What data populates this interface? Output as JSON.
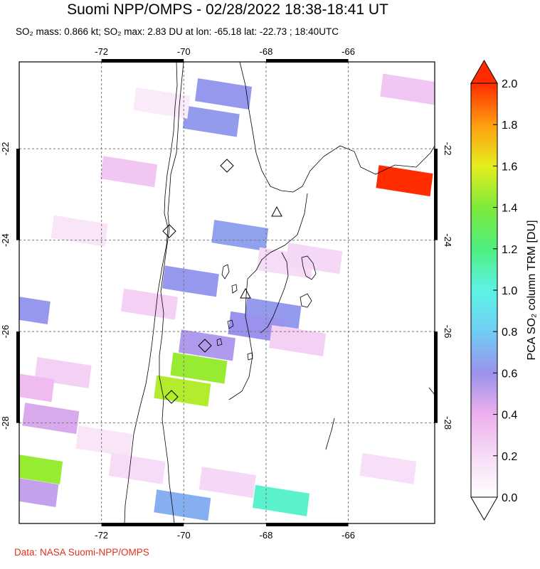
{
  "title": "Suomi NPP/OMPS - 02/28/2022 18:38-18:41 UT",
  "subtitle": "SO₂ mass: 0.866 kt; SO₂ max: 2.83 DU at lon: -65.18 lat: -22.73 ; 18:40UTC",
  "credit": "Data: NASA Suomi-NPP/OMPS",
  "chart_data": {
    "type": "heatmap",
    "map": {
      "lon_range": [
        -74,
        -63.9
      ],
      "lat_range": [
        -30.2,
        -20.1
      ],
      "grid": true
    },
    "x_ticks": [
      -72,
      -70,
      -68,
      -66
    ],
    "x_tick_labels": [
      "-72",
      "-70",
      "-68",
      "-66"
    ],
    "y_ticks": [
      -22,
      -24,
      -26,
      -28
    ],
    "y_tick_labels": [
      "-22",
      "-24",
      "-26",
      "-28"
    ],
    "colorbar": {
      "label": "PCA SO₂ column TRM [DU]",
      "range": [
        0,
        2
      ],
      "ticks": [
        0.0,
        0.2,
        0.4,
        0.6,
        0.8,
        1.0,
        1.2,
        1.4,
        1.6,
        1.8,
        2.0
      ],
      "tick_labels": [
        "0.0",
        "0.2",
        "0.4",
        "0.6",
        "0.8",
        "1.0",
        "1.2",
        "1.4",
        "1.6",
        "1.8",
        "2.0"
      ]
    },
    "pixels": [
      {
        "lon": -64.6,
        "lat": -22.7,
        "value": 2.0
      },
      {
        "lon": -69.6,
        "lat": -26.8,
        "value": 1.45
      },
      {
        "lon": -70.0,
        "lat": -27.3,
        "value": 1.5
      },
      {
        "lon": -67.6,
        "lat": -29.7,
        "value": 1.05
      },
      {
        "lon": -73.6,
        "lat": -29.0,
        "value": 1.45
      },
      {
        "lon": -68.6,
        "lat": -23.9,
        "value": 0.65
      },
      {
        "lon": -69.0,
        "lat": -20.8,
        "value": 0.62
      },
      {
        "lon": -69.3,
        "lat": -21.4,
        "value": 0.63
      },
      {
        "lon": -69.8,
        "lat": -24.9,
        "value": 0.62
      },
      {
        "lon": -69.4,
        "lat": -26.3,
        "value": 0.55
      },
      {
        "lon": -70.0,
        "lat": -29.8,
        "value": 0.7
      },
      {
        "lon": -73.9,
        "lat": -25.5,
        "value": 0.62
      },
      {
        "lon": -67.8,
        "lat": -25.6,
        "value": 0.63
      },
      {
        "lon": -68.2,
        "lat": -25.9,
        "value": 0.6
      },
      {
        "lon": -73.2,
        "lat": -27.9,
        "value": 0.45
      },
      {
        "lon": -73.7,
        "lat": -29.5,
        "value": 0.5
      },
      {
        "lon": -64.5,
        "lat": -20.7,
        "value": 0.3
      },
      {
        "lon": -71.3,
        "lat": -22.5,
        "value": 0.3
      },
      {
        "lon": -72.9,
        "lat": -26.9,
        "value": 0.25
      },
      {
        "lon": -70.8,
        "lat": -25.4,
        "value": 0.25
      },
      {
        "lon": -67.5,
        "lat": -24.5,
        "value": 0.2
      },
      {
        "lon": -66.8,
        "lat": -24.4,
        "value": 0.22
      },
      {
        "lon": -68.9,
        "lat": -29.3,
        "value": 0.22
      },
      {
        "lon": -73.8,
        "lat": -27.2,
        "value": 0.35
      },
      {
        "lon": -71.9,
        "lat": -28.4,
        "value": 0.15
      },
      {
        "lon": -72.5,
        "lat": -23.8,
        "value": 0.15
      },
      {
        "lon": -70.5,
        "lat": -21.0,
        "value": 0.12
      },
      {
        "lon": -67.2,
        "lat": -26.2,
        "value": 0.25
      },
      {
        "lon": -65.0,
        "lat": -29.0,
        "value": 0.18
      },
      {
        "lon": -71.1,
        "lat": -29.0,
        "value": 0.2
      }
    ]
  }
}
